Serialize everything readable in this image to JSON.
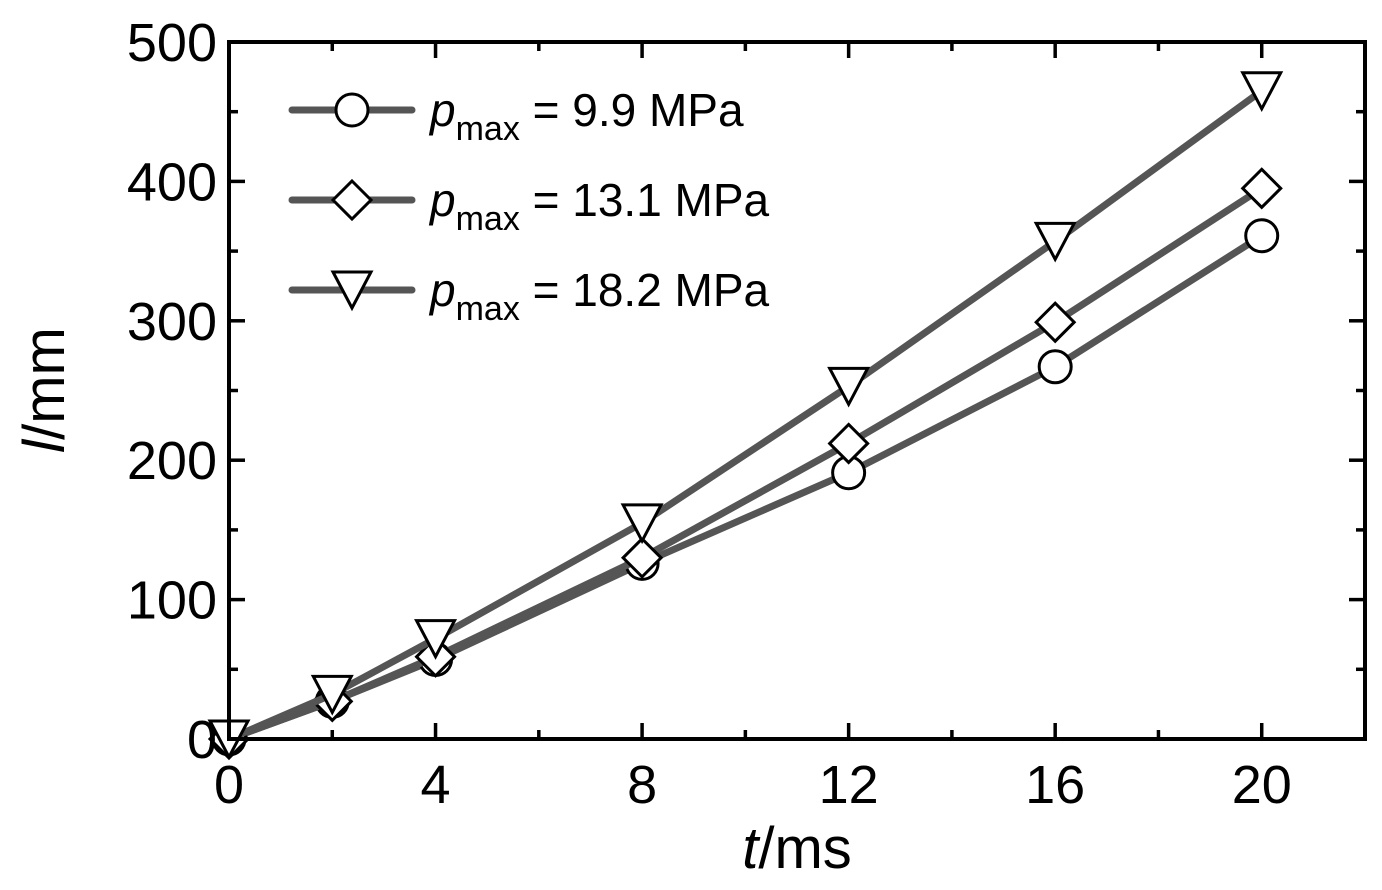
{
  "chart_data": {
    "type": "line",
    "title": "",
    "xlabel": {
      "italic": "t",
      "rest": "/ms"
    },
    "ylabel": {
      "italic": "l",
      "rest": "/mm"
    },
    "xlim": [
      0,
      22
    ],
    "ylim": [
      0,
      500
    ],
    "xticks": [
      0,
      4,
      8,
      12,
      16,
      20
    ],
    "xminor": [
      2,
      6,
      10,
      14,
      18,
      22
    ],
    "yticks": [
      0,
      100,
      200,
      300,
      400,
      500
    ],
    "yminor": [
      50,
      150,
      250,
      350,
      450
    ],
    "xtick_labels": [
      "0",
      "4",
      "8",
      "12",
      "16",
      "20"
    ],
    "ytick_labels": [
      "0",
      "100",
      "200",
      "300",
      "400",
      "500"
    ],
    "grid": false,
    "legend_position": "top-left",
    "line_color": "#555555",
    "series": [
      {
        "name": "p_max = 9.9 MPa",
        "legend": {
          "p": "p",
          "sub": "max",
          "rest": " = 9.9 MPa"
        },
        "marker": "circle",
        "x": [
          0,
          2,
          4,
          8,
          12,
          16,
          20
        ],
        "y": [
          0,
          27,
          57,
          126,
          191,
          267,
          361
        ]
      },
      {
        "name": "p_max = 13.1 MPa",
        "legend": {
          "p": "p",
          "sub": "max",
          "rest": " = 13.1 MPa"
        },
        "marker": "diamond",
        "x": [
          0,
          2,
          4,
          8,
          12,
          16,
          20
        ],
        "y": [
          0,
          27,
          59,
          130,
          212,
          299,
          395
        ]
      },
      {
        "name": "p_max = 18.2 MPa",
        "legend": {
          "p": "p",
          "sub": "max",
          "rest": " = 18.2 MPa"
        },
        "marker": "triangle-down",
        "x": [
          0,
          2,
          4,
          8,
          12,
          16,
          20
        ],
        "y": [
          0,
          32,
          72,
          155,
          253,
          357,
          465
        ]
      }
    ]
  }
}
